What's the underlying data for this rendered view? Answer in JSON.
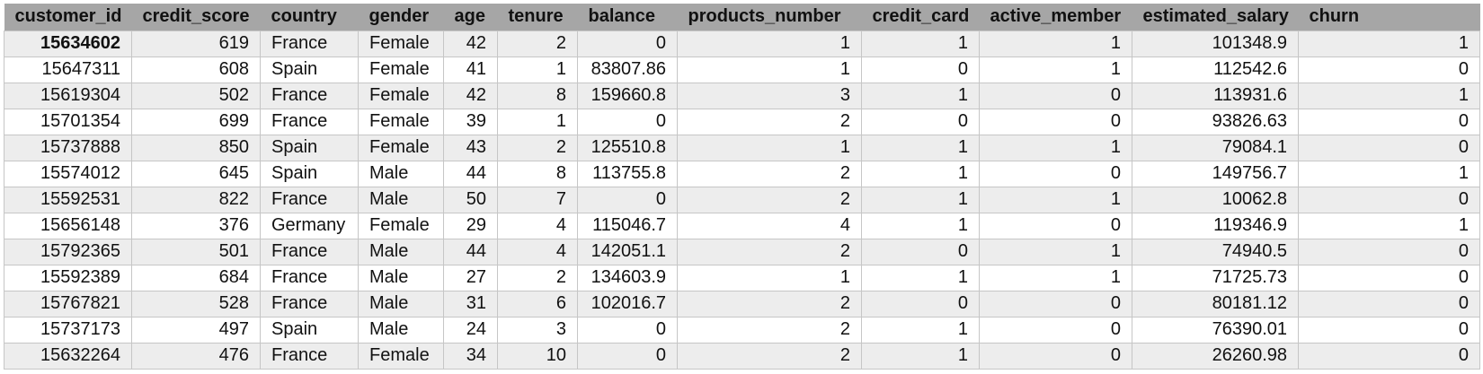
{
  "columns": [
    "customer_id",
    "credit_score",
    "country",
    "gender",
    "age",
    "tenure",
    "balance",
    "products_number",
    "credit_card",
    "active_member",
    "estimated_salary",
    "churn"
  ],
  "rows": [
    [
      "15634602",
      "619",
      "France",
      "Female",
      "42",
      "2",
      "0",
      "1",
      "1",
      "1",
      "101348.9",
      "1"
    ],
    [
      "15647311",
      "608",
      "Spain",
      "Female",
      "41",
      "1",
      "83807.86",
      "1",
      "0",
      "1",
      "112542.6",
      "0"
    ],
    [
      "15619304",
      "502",
      "France",
      "Female",
      "42",
      "8",
      "159660.8",
      "3",
      "1",
      "0",
      "113931.6",
      "1"
    ],
    [
      "15701354",
      "699",
      "France",
      "Female",
      "39",
      "1",
      "0",
      "2",
      "0",
      "0",
      "93826.63",
      "0"
    ],
    [
      "15737888",
      "850",
      "Spain",
      "Female",
      "43",
      "2",
      "125510.8",
      "1",
      "1",
      "1",
      "79084.1",
      "0"
    ],
    [
      "15574012",
      "645",
      "Spain",
      "Male",
      "44",
      "8",
      "113755.8",
      "2",
      "1",
      "0",
      "149756.7",
      "1"
    ],
    [
      "15592531",
      "822",
      "France",
      "Male",
      "50",
      "7",
      "0",
      "2",
      "1",
      "1",
      "10062.8",
      "0"
    ],
    [
      "15656148",
      "376",
      "Germany",
      "Female",
      "29",
      "4",
      "115046.7",
      "4",
      "1",
      "0",
      "119346.9",
      "1"
    ],
    [
      "15792365",
      "501",
      "France",
      "Male",
      "44",
      "4",
      "142051.1",
      "2",
      "0",
      "1",
      "74940.5",
      "0"
    ],
    [
      "15592389",
      "684",
      "France",
      "Male",
      "27",
      "2",
      "134603.9",
      "1",
      "1",
      "1",
      "71725.73",
      "0"
    ],
    [
      "15767821",
      "528",
      "France",
      "Male",
      "31",
      "6",
      "102016.7",
      "2",
      "0",
      "0",
      "80181.12",
      "0"
    ],
    [
      "15737173",
      "497",
      "Spain",
      "Male",
      "24",
      "3",
      "0",
      "2",
      "1",
      "0",
      "76390.01",
      "0"
    ],
    [
      "15632264",
      "476",
      "France",
      "Female",
      "34",
      "10",
      "0",
      "2",
      "1",
      "0",
      "26260.98",
      "0"
    ]
  ],
  "colors": {
    "header_bg": "#a6a6a6",
    "band_row_bg": "#ededed",
    "plain_row_bg": "#ffffff",
    "grid_line": "#c6c6c6"
  }
}
